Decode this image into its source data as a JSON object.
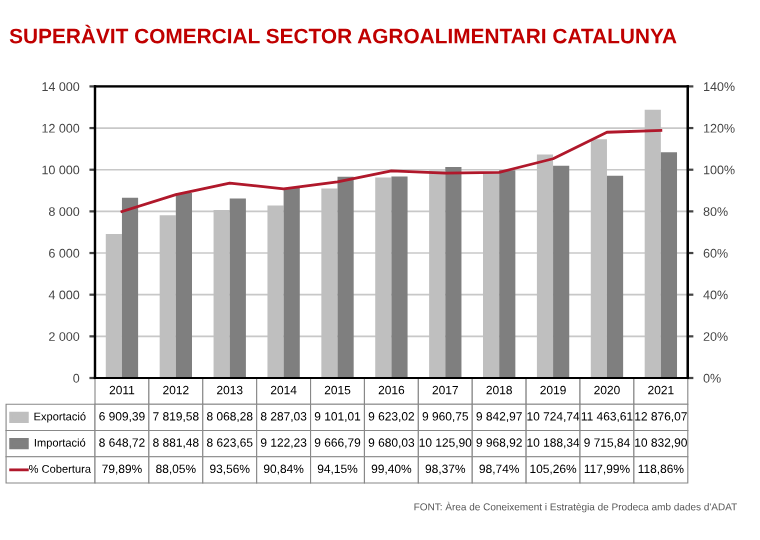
{
  "chart_data": {
    "type": "bar",
    "title": "SUPERÀVIT COMERCIAL SECTOR AGROALIMENTARI CATALUNYA",
    "categories": [
      "2011",
      "2012",
      "2013",
      "2014",
      "2015",
      "2016",
      "2017",
      "2018",
      "2019",
      "2020",
      "2021"
    ],
    "series": [
      {
        "name": "Exportació",
        "color": "#bfbfbf",
        "values": [
          6909.39,
          7819.58,
          8068.28,
          8287.03,
          9101.01,
          9623.02,
          9960.75,
          9842.97,
          10724.74,
          11463.61,
          12876.07
        ],
        "value_labels": [
          "6 909,39",
          "7 819,58",
          "8 068,28",
          "8 287,03",
          "9 101,01",
          "9 623,02",
          "9 960,75",
          "9 842,97",
          "10 724,74",
          "11 463,61",
          "12 876,07"
        ]
      },
      {
        "name": "Importació",
        "color": "#7f7f7f",
        "values": [
          8648.72,
          8881.48,
          8623.65,
          9122.23,
          9666.79,
          9680.03,
          10125.9,
          9968.92,
          10188.34,
          9715.84,
          10832.9
        ],
        "value_labels": [
          "8 648,72",
          "8 881,48",
          "8 623,65",
          "9 122,23",
          "9 666,79",
          "9 680,03",
          "10 125,90",
          "9 968,92",
          "10 188,34",
          "9 715,84",
          "10 832,90"
        ]
      },
      {
        "name": "% Cobertura",
        "type": "line",
        "axis": "y2",
        "color": "#b0182b",
        "values": [
          79.89,
          88.05,
          93.56,
          90.84,
          94.15,
          99.4,
          98.37,
          98.74,
          105.26,
          117.99,
          118.86
        ],
        "value_labels": [
          "79,89%",
          "88,05%",
          "93,56%",
          "90,84%",
          "94,15%",
          "99,40%",
          "98,37%",
          "98,74%",
          "105,26%",
          "117,99%",
          "118,86%"
        ]
      }
    ],
    "ylim": [
      0,
      14000
    ],
    "yticks": [
      0,
      {
        "value": 2000,
        "label": "2 000"
      },
      {
        "value": 4000,
        "label": "4 000"
      },
      {
        "value": 6000,
        "label": "6 000"
      },
      {
        "value": 8000,
        "label": "8 000"
      },
      {
        "value": 10000,
        "label": "10 000"
      },
      {
        "value": 12000,
        "label": "12 000"
      },
      {
        "value": 14000,
        "label": "14 000"
      }
    ],
    "y2lim": [
      0,
      140
    ],
    "y2ticks": [
      {
        "value": 0,
        "label": "0%"
      },
      {
        "value": 20,
        "label": "20%"
      },
      {
        "value": 40,
        "label": "40%"
      },
      {
        "value": 60,
        "label": "60%"
      },
      {
        "value": 80,
        "label": "80%"
      },
      {
        "value": 100,
        "label": "100%"
      },
      {
        "value": 120,
        "label": "120%"
      },
      {
        "value": 140,
        "label": "140%"
      }
    ],
    "grid": "y",
    "marker": "none",
    "legend": "bottom",
    "annotations": [
      "FONT: Àrea de Coneixement i Estratègia de Prodeca amb dades d'ADAT"
    ]
  }
}
